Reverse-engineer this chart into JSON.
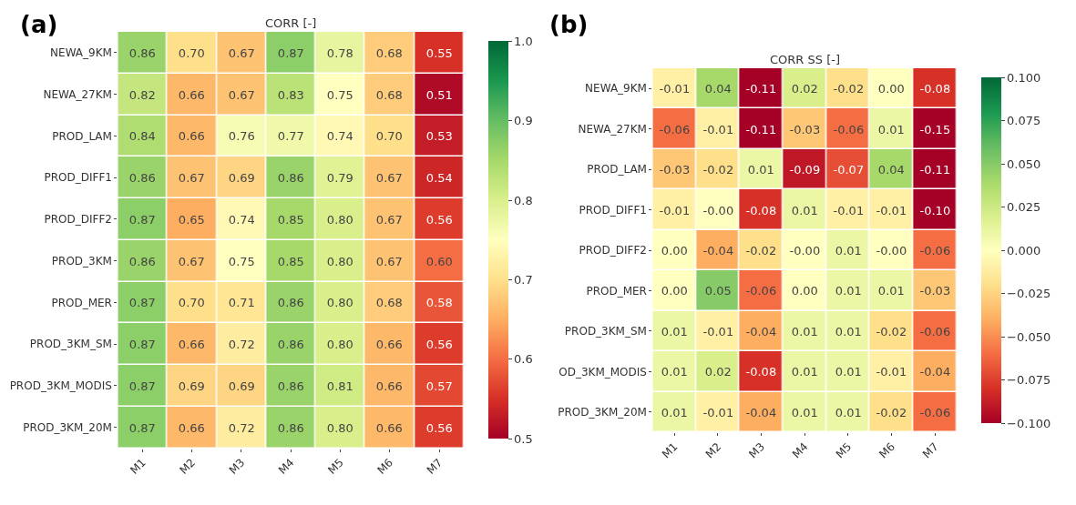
{
  "chart_data": [
    {
      "type": "heatmap",
      "title": "CORR [-]",
      "annotations": [
        "(a)"
      ],
      "categories": [
        "M1",
        "M2",
        "M3",
        "M4",
        "M5",
        "M6",
        "M7"
      ],
      "y_categories": [
        "NEWA_9KM",
        "NEWA_27KM",
        "PROD_LAM",
        "PROD_DIFF1",
        "PROD_DIFF2",
        "PROD_3KM",
        "PROD_MER",
        "PROD_3KM_SM",
        "PROD_3KM_MODIS",
        "PROD_3KM_20M"
      ],
      "cells": [
        [
          0.86,
          0.7,
          0.67,
          0.87,
          0.78,
          0.68,
          0.55
        ],
        [
          0.82,
          0.66,
          0.67,
          0.83,
          0.75,
          0.68,
          0.51
        ],
        [
          0.84,
          0.66,
          0.76,
          0.77,
          0.74,
          0.7,
          0.53
        ],
        [
          0.86,
          0.67,
          0.69,
          0.86,
          0.79,
          0.67,
          0.54
        ],
        [
          0.87,
          0.65,
          0.74,
          0.85,
          0.8,
          0.67,
          0.56
        ],
        [
          0.86,
          0.67,
          0.75,
          0.85,
          0.8,
          0.67,
          0.6
        ],
        [
          0.87,
          0.7,
          0.71,
          0.86,
          0.8,
          0.68,
          0.58
        ],
        [
          0.87,
          0.66,
          0.72,
          0.86,
          0.8,
          0.66,
          0.56
        ],
        [
          0.87,
          0.69,
          0.69,
          0.86,
          0.81,
          0.66,
          0.57
        ],
        [
          0.87,
          0.66,
          0.72,
          0.86,
          0.8,
          0.66,
          0.56
        ]
      ],
      "cell_labels": [
        [
          "0.86",
          "0.70",
          "0.67",
          "0.87",
          "0.78",
          "0.68",
          "0.55"
        ],
        [
          "0.82",
          "0.66",
          "0.67",
          "0.83",
          "0.75",
          "0.68",
          "0.51"
        ],
        [
          "0.84",
          "0.66",
          "0.76",
          "0.77",
          "0.74",
          "0.70",
          "0.53"
        ],
        [
          "0.86",
          "0.67",
          "0.69",
          "0.86",
          "0.79",
          "0.67",
          "0.54"
        ],
        [
          "0.87",
          "0.65",
          "0.74",
          "0.85",
          "0.80",
          "0.67",
          "0.56"
        ],
        [
          "0.86",
          "0.67",
          "0.75",
          "0.85",
          "0.80",
          "0.67",
          "0.60"
        ],
        [
          "0.87",
          "0.70",
          "0.71",
          "0.86",
          "0.80",
          "0.68",
          "0.58"
        ],
        [
          "0.87",
          "0.66",
          "0.72",
          "0.86",
          "0.80",
          "0.66",
          "0.56"
        ],
        [
          "0.87",
          "0.69",
          "0.69",
          "0.86",
          "0.81",
          "0.66",
          "0.57"
        ],
        [
          "0.87",
          "0.66",
          "0.72",
          "0.86",
          "0.80",
          "0.66",
          "0.56"
        ]
      ],
      "clim": [
        0.5,
        1.0
      ],
      "cticks": [
        0.5,
        0.6,
        0.7,
        0.8,
        0.9,
        {
          "value": 1.0,
          "label": "1.0"
        }
      ]
    },
    {
      "type": "heatmap",
      "title": "CORR SS [-]",
      "annotations": [
        "(b)"
      ],
      "categories": [
        "M1",
        "M2",
        "M3",
        "M4",
        "M5",
        "M6",
        "M7"
      ],
      "y_categories": [
        "NEWA_9KM",
        "NEWA_27KM",
        "PROD_LAM",
        "PROD_DIFF1",
        "PROD_DIFF2",
        "PROD_MER",
        "PROD_3KM_SM",
        "OD_3KM_MODIS",
        "PROD_3KM_20M"
      ],
      "cells": [
        [
          -0.01,
          0.04,
          -0.11,
          0.02,
          -0.02,
          0.0,
          -0.08
        ],
        [
          -0.06,
          -0.01,
          -0.11,
          -0.03,
          -0.06,
          0.01,
          -0.15
        ],
        [
          -0.03,
          -0.02,
          0.01,
          -0.09,
          -0.07,
          0.04,
          -0.11
        ],
        [
          -0.01,
          0.0,
          -0.08,
          0.01,
          -0.01,
          -0.01,
          -0.1
        ],
        [
          0.0,
          -0.04,
          -0.02,
          0.0,
          0.01,
          0.0,
          -0.06
        ],
        [
          0.0,
          0.05,
          -0.06,
          0.0,
          0.01,
          0.01,
          -0.03
        ],
        [
          0.01,
          -0.01,
          -0.04,
          0.01,
          0.01,
          -0.02,
          -0.06
        ],
        [
          0.01,
          0.02,
          -0.08,
          0.01,
          0.01,
          -0.01,
          -0.04
        ],
        [
          0.01,
          -0.01,
          -0.04,
          0.01,
          0.01,
          -0.02,
          -0.06
        ]
      ],
      "cell_labels": [
        [
          "-0.01",
          "0.04",
          "-0.11",
          "0.02",
          "-0.02",
          "0.00",
          "-0.08"
        ],
        [
          "-0.06",
          "-0.01",
          "-0.11",
          "-0.03",
          "-0.06",
          "0.01",
          "-0.15"
        ],
        [
          "-0.03",
          "-0.02",
          "0.01",
          "-0.09",
          "-0.07",
          "0.04",
          "-0.11"
        ],
        [
          "-0.01",
          "-0.00",
          "-0.08",
          "0.01",
          "-0.01",
          "-0.01",
          "-0.10"
        ],
        [
          "0.00",
          "-0.04",
          "-0.02",
          "-0.00",
          "0.01",
          "-0.00",
          "-0.06"
        ],
        [
          "0.00",
          "0.05",
          "-0.06",
          "0.00",
          "0.01",
          "0.01",
          "-0.03"
        ],
        [
          "0.01",
          "-0.01",
          "-0.04",
          "0.01",
          "0.01",
          "-0.02",
          "-0.06"
        ],
        [
          "0.01",
          "0.02",
          "-0.08",
          "0.01",
          "0.01",
          "-0.01",
          "-0.04"
        ],
        [
          "0.01",
          "-0.01",
          "-0.04",
          "0.01",
          "0.01",
          "-0.02",
          "-0.06"
        ]
      ],
      "clim": [
        -0.1,
        0.1
      ],
      "cticks": [
        {
          "value": -0.1,
          "label": "−0.100"
        },
        {
          "value": -0.075,
          "label": "−0.075"
        },
        {
          "value": -0.05,
          "label": "−0.050"
        },
        {
          "value": -0.025,
          "label": "−0.025"
        },
        {
          "value": 0,
          "label": "0.000"
        },
        {
          "value": 0.025,
          "label": "0.025"
        },
        {
          "value": 0.05,
          "label": "0.050"
        },
        {
          "value": 0.075,
          "label": "0.075"
        },
        {
          "value": 0.1,
          "label": "0.100"
        }
      ]
    }
  ]
}
